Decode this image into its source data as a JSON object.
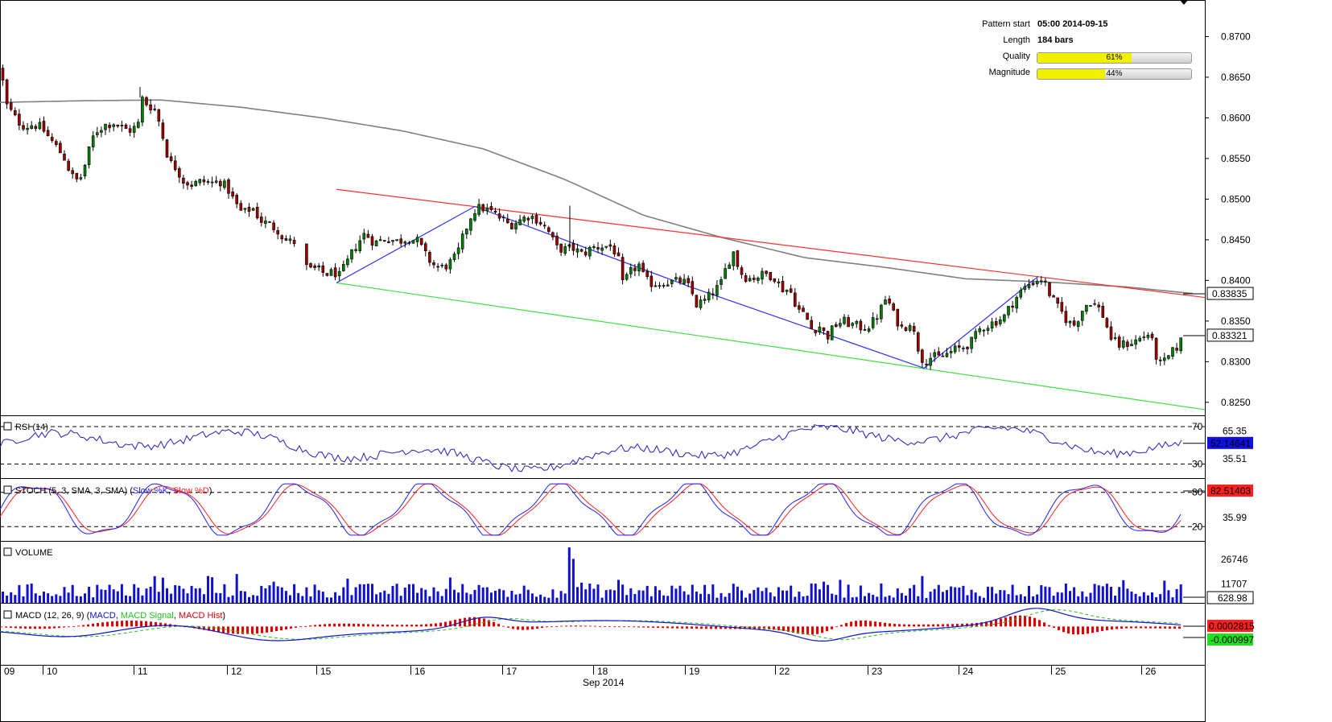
{
  "pattern_info": {
    "start_label": "Pattern start",
    "start_value": "05:00 2014-09-15",
    "length_label": "Length",
    "length_value": "184 bars",
    "quality_label": "Quality",
    "quality_value": 61,
    "quality_text": "61%",
    "magnitude_label": "Magnitude",
    "magnitude_value": 44,
    "magnitude_text": "44%"
  },
  "colors": {
    "candle_up": "#008000",
    "candle_down": "#a00000",
    "ma_line": "#808080",
    "resistance": "#ff3030",
    "support": "#40e040",
    "zigzag": "#3030ff",
    "rsi_line": "#2020c0",
    "stoch_k": "#2020ff",
    "stoch_d": "#ff2020",
    "volume": "#1010d0",
    "macd": "#1010d0",
    "macd_signal": "#20c020",
    "macd_hist": "#e00000"
  },
  "chart_data": [
    {
      "type": "candlestick",
      "panel": "price",
      "y_ticks": [
        "0.8700",
        "0.8650",
        "0.8600",
        "0.8550",
        "0.8500",
        "0.8450",
        "0.8400",
        "0.8350",
        "0.8300",
        "0.8250"
      ],
      "ylim": [
        0.8234,
        0.8745
      ],
      "last_price": "0.83321",
      "ma_price": "0.83835",
      "close_path": [
        [
          0,
          0.8662
        ],
        [
          5,
          0.8618
        ],
        [
          12,
          0.8608
        ],
        [
          20,
          0.8596
        ],
        [
          30,
          0.8589
        ],
        [
          40,
          0.8592
        ],
        [
          50,
          0.8588
        ],
        [
          60,
          0.8575
        ],
        [
          68,
          0.8565
        ],
        [
          78,
          0.8552
        ],
        [
          86,
          0.8532
        ],
        [
          92,
          0.8522
        ],
        [
          100,
          0.8528
        ],
        [
          108,
          0.8556
        ],
        [
          116,
          0.8582
        ],
        [
          128,
          0.8591
        ],
        [
          140,
          0.8594
        ],
        [
          152,
          0.8586
        ],
        [
          160,
          0.8585
        ],
        [
          170,
          0.859
        ],
        [
          174,
          0.8625
        ],
        [
          182,
          0.8616
        ],
        [
          190,
          0.8612
        ],
        [
          198,
          0.859
        ],
        [
          204,
          0.8562
        ],
        [
          210,
          0.8545
        ],
        [
          218,
          0.8538
        ],
        [
          226,
          0.8523
        ],
        [
          236,
          0.8518
        ],
        [
          250,
          0.8522
        ],
        [
          262,
          0.852
        ],
        [
          272,
          0.8522
        ],
        [
          282,
          0.8512
        ],
        [
          290,
          0.8496
        ],
        [
          300,
          0.8482
        ],
        [
          312,
          0.849
        ],
        [
          322,
          0.8474
        ],
        [
          334,
          0.8468
        ],
        [
          344,
          0.8462
        ],
        [
          352,
          0.845
        ],
        [
          360,
          0.8447
        ],
        [
          370,
          0.8448
        ],
        [
          376,
          0.844
        ],
        [
          380,
          0.8412
        ],
        [
          392,
          0.8414
        ],
        [
          402,
          0.8408
        ],
        [
          414,
          0.841
        ],
        [
          420,
          0.8405
        ],
        [
          430,
          0.8422
        ],
        [
          440,
          0.8442
        ],
        [
          452,
          0.8458
        ],
        [
          464,
          0.8446
        ],
        [
          478,
          0.8452
        ],
        [
          492,
          0.8448
        ],
        [
          506,
          0.8452
        ],
        [
          518,
          0.8448
        ],
        [
          528,
          0.843
        ],
        [
          536,
          0.842
        ],
        [
          546,
          0.8415
        ],
        [
          556,
          0.842
        ],
        [
          566,
          0.843
        ],
        [
          576,
          0.846
        ],
        [
          586,
          0.8485
        ],
        [
          596,
          0.849
        ],
        [
          610,
          0.8484
        ],
        [
          622,
          0.8475
        ],
        [
          632,
          0.8468
        ],
        [
          644,
          0.8474
        ],
        [
          656,
          0.848
        ],
        [
          668,
          0.8474
        ],
        [
          680,
          0.846
        ],
        [
          690,
          0.844
        ],
        [
          700,
          0.8438
        ],
        [
          710,
          0.844
        ],
        [
          722,
          0.8432
        ],
        [
          734,
          0.844
        ],
        [
          746,
          0.8442
        ],
        [
          758,
          0.8442
        ],
        [
          766,
          0.843
        ],
        [
          772,
          0.8395
        ],
        [
          782,
          0.841
        ],
        [
          792,
          0.842
        ],
        [
          800,
          0.84
        ],
        [
          812,
          0.8395
        ],
        [
          824,
          0.8398
        ],
        [
          836,
          0.8398
        ],
        [
          846,
          0.84
        ],
        [
          856,
          0.839
        ],
        [
          864,
          0.837
        ],
        [
          874,
          0.8375
        ],
        [
          884,
          0.8385
        ],
        [
          894,
          0.8395
        ],
        [
          902,
          0.842
        ],
        [
          910,
          0.8435
        ],
        [
          918,
          0.841
        ],
        [
          928,
          0.8402
        ],
        [
          940,
          0.8405
        ],
        [
          950,
          0.8408
        ],
        [
          960,
          0.8405
        ],
        [
          970,
          0.839
        ],
        [
          980,
          0.8388
        ],
        [
          990,
          0.8365
        ],
        [
          1000,
          0.8355
        ],
        [
          1008,
          0.8338
        ],
        [
          1016,
          0.8345
        ],
        [
          1026,
          0.833
        ],
        [
          1036,
          0.8345
        ],
        [
          1046,
          0.835
        ],
        [
          1058,
          0.8345
        ],
        [
          1070,
          0.8342
        ],
        [
          1080,
          0.8345
        ],
        [
          1090,
          0.8358
        ],
        [
          1100,
          0.838
        ],
        [
          1110,
          0.8355
        ],
        [
          1120,
          0.834
        ],
        [
          1130,
          0.835
        ],
        [
          1138,
          0.832
        ],
        [
          1146,
          0.83
        ],
        [
          1156,
          0.8306
        ],
        [
          1166,
          0.8305
        ],
        [
          1176,
          0.831
        ],
        [
          1186,
          0.8315
        ],
        [
          1196,
          0.8318
        ],
        [
          1206,
          0.8325
        ],
        [
          1216,
          0.834
        ],
        [
          1226,
          0.8345
        ],
        [
          1236,
          0.835
        ],
        [
          1246,
          0.8355
        ],
        [
          1256,
          0.8372
        ],
        [
          1266,
          0.8385
        ],
        [
          1276,
          0.8395
        ],
        [
          1286,
          0.84
        ],
        [
          1294,
          0.8402
        ],
        [
          1302,
          0.8385
        ],
        [
          1310,
          0.837
        ],
        [
          1318,
          0.836
        ],
        [
          1326,
          0.8348
        ],
        [
          1334,
          0.8345
        ],
        [
          1342,
          0.8362
        ],
        [
          1352,
          0.8375
        ],
        [
          1362,
          0.8368
        ],
        [
          1370,
          0.8355
        ],
        [
          1378,
          0.833
        ],
        [
          1388,
          0.832
        ],
        [
          1398,
          0.8322
        ],
        [
          1408,
          0.8325
        ],
        [
          1418,
          0.833
        ],
        [
          1426,
          0.8335
        ],
        [
          1432,
          0.8318
        ],
        [
          1438,
          0.8296
        ],
        [
          1446,
          0.83
        ],
        [
          1454,
          0.831
        ],
        [
          1462,
          0.832
        ],
        [
          1470,
          0.8332
        ]
      ],
      "ma_path": [
        [
          0,
          0.8619
        ],
        [
          100,
          0.8621
        ],
        [
          200,
          0.8622
        ],
        [
          300,
          0.8613
        ],
        [
          400,
          0.86
        ],
        [
          500,
          0.8584
        ],
        [
          600,
          0.8562
        ],
        [
          700,
          0.8525
        ],
        [
          800,
          0.848
        ],
        [
          900,
          0.8452
        ],
        [
          1000,
          0.8428
        ],
        [
          1100,
          0.8416
        ],
        [
          1200,
          0.8402
        ],
        [
          1300,
          0.8398
        ],
        [
          1400,
          0.8392
        ],
        [
          1480,
          0.8384
        ]
      ],
      "resistance_line": [
        [
          418,
          0.8512
        ],
        [
          1497,
          0.8379
        ]
      ],
      "support_line": [
        [
          418,
          0.8397
        ],
        [
          1497,
          0.8241
        ]
      ],
      "zigzag": [
        [
          418,
          0.8397
        ],
        [
          590,
          0.8491
        ],
        [
          855,
          0.8393
        ],
        [
          1148,
          0.8292
        ],
        [
          1290,
          0.8405
        ]
      ]
    },
    {
      "type": "line",
      "panel": "rsi",
      "title": "RSI (14)",
      "ylim": [
        15,
        82
      ],
      "levels": [
        "70",
        "30"
      ],
      "y_ticks": [
        "65.35",
        "35.51"
      ],
      "last_value": "52.14641"
    },
    {
      "type": "line",
      "panel": "stoch",
      "title": "STOCH (5, 3, SMA, 3, SMA)",
      "series": [
        {
          "name": "Slow %K"
        },
        {
          "name": "Slow %D"
        }
      ],
      "ylim": [
        -5,
        105
      ],
      "levels": [
        "80",
        "20"
      ],
      "y_ticks": [
        "35.99"
      ],
      "last_value": "82.51403"
    },
    {
      "type": "bar",
      "panel": "volume",
      "title": "VOLUME",
      "ylim": [
        0,
        38000
      ],
      "y_ticks": [
        "26746",
        "11707"
      ],
      "last_value": "628.98"
    },
    {
      "type": "line",
      "panel": "macd",
      "title": "MACD (12, 26, 9)",
      "series": [
        {
          "name": "MACD"
        },
        {
          "name": "MACD Signal"
        },
        {
          "name": "MACD Hist"
        }
      ],
      "ylim": [
        -0.0026,
        0.0016
      ],
      "y_ticks": [
        "0.0002815",
        "-0.000997"
      ],
      "last_values": [
        "0.0002815",
        "-0.000997"
      ]
    }
  ],
  "x_axis": {
    "days": [
      {
        "label": "09",
        "x": 0
      },
      {
        "label": "10",
        "x": 53
      },
      {
        "label": "11",
        "x": 166
      },
      {
        "label": "12",
        "x": 282
      },
      {
        "label": "15",
        "x": 393
      },
      {
        "label": "16",
        "x": 510
      },
      {
        "label": "17",
        "x": 624
      },
      {
        "label": "18",
        "x": 737
      },
      {
        "label": "19",
        "x": 851
      },
      {
        "label": "22",
        "x": 963
      },
      {
        "label": "23",
        "x": 1078
      },
      {
        "label": "24",
        "x": 1191
      },
      {
        "label": "25",
        "x": 1306
      },
      {
        "label": "26",
        "x": 1418
      }
    ],
    "month_label": "Sep 2014"
  }
}
